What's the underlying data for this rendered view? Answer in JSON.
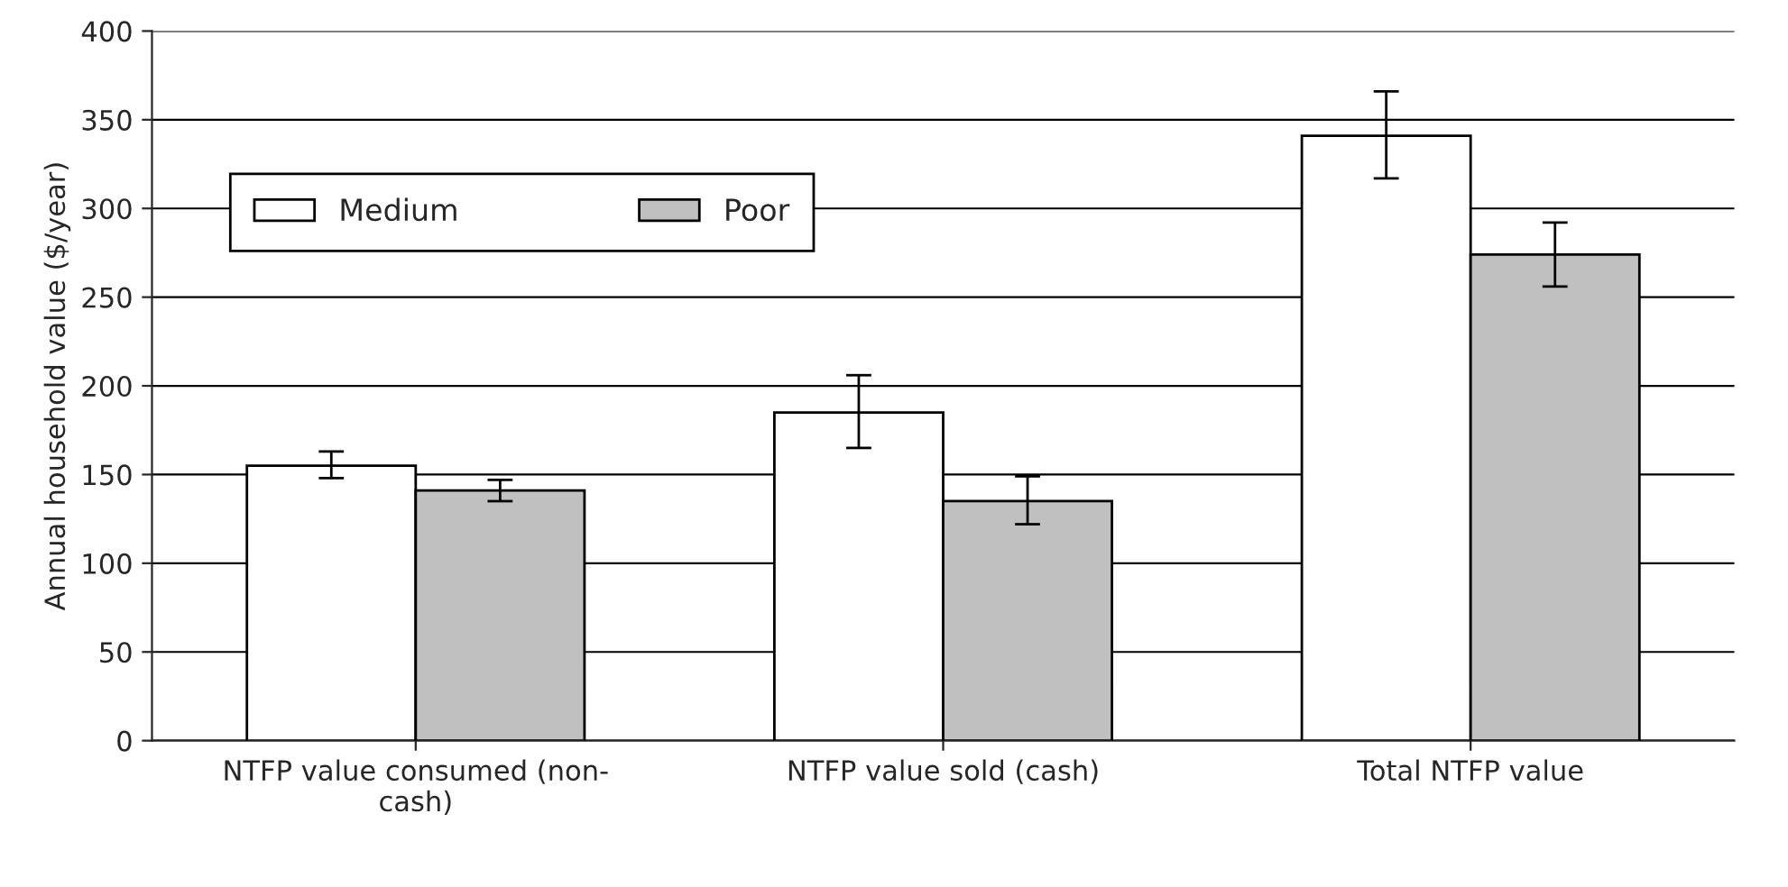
{
  "chart_data": {
    "type": "bar",
    "ylabel": "Annual household value ($/year)",
    "categories": [
      "NTFP value consumed (non-\ncash)",
      "NTFP value sold (cash)",
      "Total NTFP value"
    ],
    "series": [
      {
        "name": "Medium",
        "color": "#ffffff",
        "values": [
          155,
          185,
          341
        ],
        "errors": [
          [
            148,
            163
          ],
          [
            165,
            206
          ],
          [
            317,
            366
          ]
        ]
      },
      {
        "name": "Poor",
        "color": "#c0c0c0",
        "values": [
          141,
          135,
          274
        ],
        "errors": [
          [
            135,
            147
          ],
          [
            122,
            149
          ],
          [
            256,
            292
          ]
        ]
      }
    ],
    "ylim": [
      0,
      400
    ],
    "yticks": [
      0,
      50,
      100,
      150,
      200,
      250,
      300,
      350,
      400
    ],
    "grid": "y",
    "legend": "top left"
  }
}
